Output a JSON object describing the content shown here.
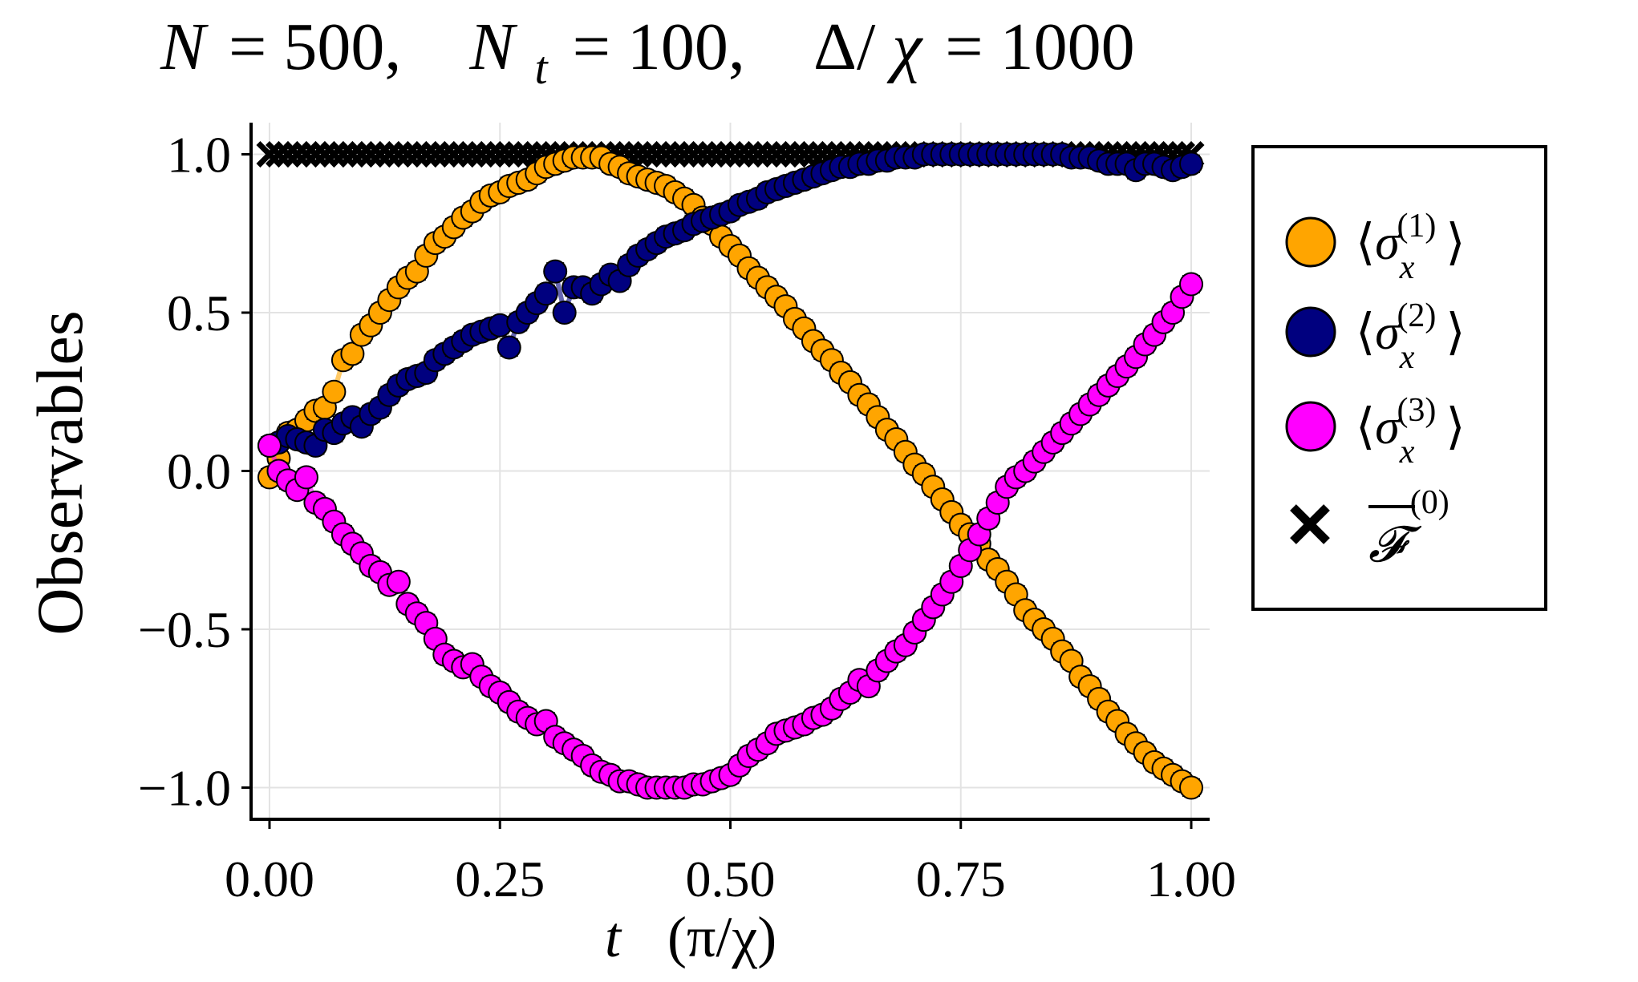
{
  "chart_data": {
    "type": "scatter",
    "title": {
      "n_sym": "N",
      "n_val": "= 500,",
      "nt_sym": "N",
      "nt_sub": "t",
      "nt_val": "= 100,",
      "delta": "Δ/",
      "chi": "χ",
      "delta_val": "= 1000"
    },
    "xlabel": {
      "var": "t",
      "unit": "(π/χ)"
    },
    "ylabel": "Observables",
    "xlim": [
      -0.02,
      1.02
    ],
    "ylim": [
      -1.1,
      1.1
    ],
    "xticks": [
      "0.00",
      "0.25",
      "0.50",
      "0.75",
      "1.00"
    ],
    "xtick_values": [
      0,
      0.25,
      0.5,
      0.75,
      1.0
    ],
    "yticks": [
      "−1.0",
      "−0.5",
      "0.0",
      "0.5",
      "1.0"
    ],
    "ytick_values": [
      -1.0,
      -0.5,
      0.0,
      0.5,
      1.0
    ],
    "grid": true,
    "legend_position": "outside-right",
    "n_points": 101,
    "t_range": [
      0,
      1
    ],
    "series": [
      {
        "key": "s1",
        "name": "⟨σx(1)⟩",
        "legend_sym": "σ",
        "legend_sub": "x",
        "legend_sup": "(1)",
        "marker": "circle",
        "color": "#FFA500",
        "values": [
          -0.02,
          0.04,
          0.12,
          0.13,
          0.16,
          0.19,
          0.2,
          0.25,
          0.35,
          0.37,
          0.43,
          0.46,
          0.5,
          0.54,
          0.58,
          0.61,
          0.63,
          0.68,
          0.72,
          0.74,
          0.77,
          0.8,
          0.82,
          0.85,
          0.87,
          0.88,
          0.9,
          0.91,
          0.92,
          0.94,
          0.96,
          0.97,
          0.98,
          0.99,
          0.99,
          0.99,
          0.99,
          0.97,
          0.96,
          0.94,
          0.93,
          0.92,
          0.91,
          0.9,
          0.88,
          0.86,
          0.84,
          0.8,
          0.78,
          0.74,
          0.71,
          0.68,
          0.64,
          0.61,
          0.58,
          0.55,
          0.52,
          0.48,
          0.45,
          0.41,
          0.38,
          0.35,
          0.31,
          0.28,
          0.24,
          0.21,
          0.17,
          0.13,
          0.1,
          0.06,
          0.02,
          -0.01,
          -0.05,
          -0.09,
          -0.13,
          -0.17,
          -0.2,
          -0.23,
          -0.28,
          -0.31,
          -0.35,
          -0.39,
          -0.44,
          -0.47,
          -0.5,
          -0.53,
          -0.57,
          -0.6,
          -0.65,
          -0.68,
          -0.72,
          -0.76,
          -0.79,
          -0.83,
          -0.86,
          -0.89,
          -0.92,
          -0.94,
          -0.96,
          -0.98,
          -1.0
        ]
      },
      {
        "key": "s2",
        "name": "⟨σx(2)⟩",
        "legend_sym": "σ",
        "legend_sub": "x",
        "legend_sup": "(2)",
        "marker": "circle",
        "color": "#00007F",
        "values": [
          0.08,
          0.09,
          0.11,
          0.1,
          0.09,
          0.08,
          0.13,
          0.12,
          0.15,
          0.17,
          0.14,
          0.18,
          0.2,
          0.24,
          0.27,
          0.29,
          0.3,
          0.31,
          0.35,
          0.37,
          0.39,
          0.41,
          0.43,
          0.44,
          0.45,
          0.46,
          0.39,
          0.47,
          0.5,
          0.53,
          0.56,
          0.63,
          0.5,
          0.58,
          0.58,
          0.56,
          0.59,
          0.62,
          0.6,
          0.65,
          0.68,
          0.7,
          0.72,
          0.74,
          0.75,
          0.76,
          0.78,
          0.79,
          0.8,
          0.81,
          0.82,
          0.84,
          0.85,
          0.86,
          0.88,
          0.89,
          0.9,
          0.91,
          0.92,
          0.93,
          0.94,
          0.95,
          0.96,
          0.96,
          0.97,
          0.97,
          0.98,
          0.98,
          0.99,
          0.99,
          0.99,
          1.0,
          1.0,
          1.0,
          1.0,
          1.0,
          1.0,
          1.0,
          1.0,
          1.0,
          1.0,
          1.0,
          1.0,
          1.0,
          1.0,
          1.0,
          1.0,
          0.99,
          0.99,
          0.99,
          0.98,
          0.97,
          0.97,
          0.97,
          0.95,
          0.97,
          0.97,
          0.96,
          0.95,
          0.96,
          0.97
        ]
      },
      {
        "key": "s3",
        "name": "⟨σx(3)⟩",
        "legend_sym": "σ",
        "legend_sub": "x",
        "legend_sup": "(3)",
        "marker": "circle",
        "color": "#FF00FF",
        "values": [
          0.08,
          0.0,
          -0.03,
          -0.06,
          -0.02,
          -0.1,
          -0.12,
          -0.16,
          -0.2,
          -0.23,
          -0.26,
          -0.3,
          -0.32,
          -0.36,
          -0.35,
          -0.42,
          -0.45,
          -0.48,
          -0.53,
          -0.58,
          -0.6,
          -0.62,
          -0.61,
          -0.65,
          -0.68,
          -0.7,
          -0.73,
          -0.76,
          -0.78,
          -0.8,
          -0.79,
          -0.84,
          -0.86,
          -0.88,
          -0.9,
          -0.93,
          -0.95,
          -0.96,
          -0.98,
          -0.98,
          -0.99,
          -1.0,
          -1.0,
          -1.0,
          -1.0,
          -1.0,
          -0.99,
          -0.99,
          -0.98,
          -0.97,
          -0.96,
          -0.93,
          -0.9,
          -0.88,
          -0.86,
          -0.83,
          -0.82,
          -0.81,
          -0.8,
          -0.78,
          -0.77,
          -0.75,
          -0.72,
          -0.7,
          -0.66,
          -0.68,
          -0.63,
          -0.6,
          -0.57,
          -0.55,
          -0.51,
          -0.47,
          -0.43,
          -0.39,
          -0.35,
          -0.3,
          -0.25,
          -0.2,
          -0.15,
          -0.1,
          -0.05,
          -0.02,
          0.0,
          0.03,
          0.06,
          0.09,
          0.12,
          0.15,
          0.18,
          0.21,
          0.24,
          0.27,
          0.3,
          0.33,
          0.36,
          0.4,
          0.43,
          0.47,
          0.5,
          0.55,
          0.59
        ]
      },
      {
        "key": "s4",
        "name": "F̄(0)",
        "legend_sym": "𝓕",
        "legend_sup": "(0)",
        "marker": "cross",
        "color": "#000000",
        "values": "constant",
        "constant_value": 1.0
      }
    ]
  }
}
